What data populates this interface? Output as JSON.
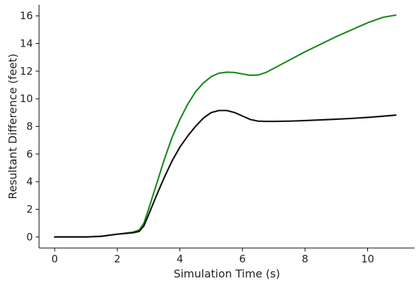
{
  "chart_data": {
    "type": "line",
    "title": "",
    "xlabel": "Simulation Time (s)",
    "ylabel": "Resultant Difference (feet)",
    "xlim": [
      -0.5,
      11.5
    ],
    "ylim": [
      -0.8,
      16.8
    ],
    "xticks": [
      0,
      2,
      4,
      6,
      8,
      10
    ],
    "yticks": [
      0,
      2,
      4,
      6,
      8,
      10,
      12,
      14,
      16
    ],
    "grid": false,
    "legend": "none",
    "series": [
      {
        "color": "#1a8a1a",
        "x": [
          0,
          0.5,
          1.0,
          1.5,
          2.0,
          2.5,
          2.7,
          2.85,
          3.0,
          3.25,
          3.5,
          3.75,
          4.0,
          4.25,
          4.5,
          4.75,
          5.0,
          5.25,
          5.5,
          5.75,
          6.0,
          6.25,
          6.5,
          6.75,
          7.0,
          7.5,
          8.0,
          8.5,
          9.0,
          9.5,
          10.0,
          10.5,
          10.9
        ],
        "y": [
          0.0,
          0.0,
          0.0,
          0.05,
          0.2,
          0.35,
          0.5,
          1.0,
          2.0,
          3.8,
          5.6,
          7.2,
          8.5,
          9.6,
          10.5,
          11.15,
          11.6,
          11.85,
          11.92,
          11.9,
          11.8,
          11.7,
          11.72,
          11.9,
          12.2,
          12.8,
          13.4,
          13.95,
          14.5,
          15.0,
          15.5,
          15.9,
          16.05
        ]
      },
      {
        "color": "#111111",
        "x": [
          0,
          0.5,
          1.0,
          1.5,
          2.0,
          2.5,
          2.7,
          2.85,
          3.0,
          3.25,
          3.5,
          3.75,
          4.0,
          4.25,
          4.5,
          4.75,
          5.0,
          5.25,
          5.5,
          5.75,
          6.0,
          6.25,
          6.5,
          6.75,
          7.0,
          7.5,
          8.0,
          8.5,
          9.0,
          9.5,
          10.0,
          10.5,
          10.9
        ],
        "y": [
          0.0,
          0.0,
          0.0,
          0.05,
          0.2,
          0.3,
          0.4,
          0.8,
          1.6,
          3.0,
          4.3,
          5.5,
          6.5,
          7.3,
          8.0,
          8.6,
          9.0,
          9.15,
          9.15,
          9.0,
          8.75,
          8.5,
          8.38,
          8.36,
          8.36,
          8.38,
          8.42,
          8.47,
          8.52,
          8.58,
          8.65,
          8.74,
          8.82
        ]
      }
    ]
  }
}
